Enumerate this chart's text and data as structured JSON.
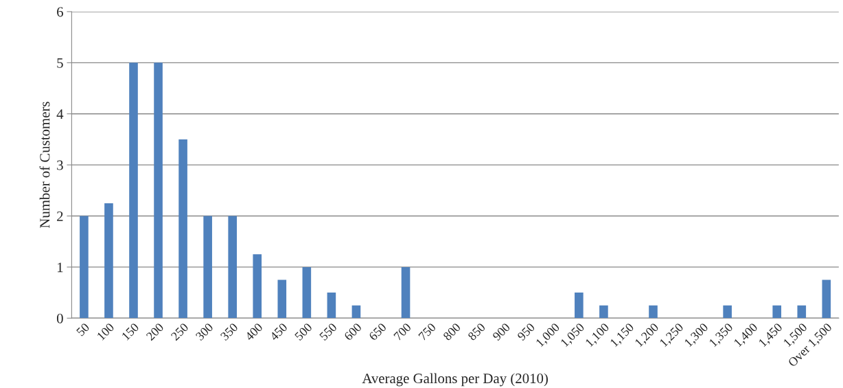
{
  "chart_data": {
    "type": "bar",
    "xlabel": "Average Gallons per Day (2010)",
    "ylabel": "Number of Customers",
    "categories": [
      "50",
      "100",
      "150",
      "200",
      "250",
      "300",
      "350",
      "400",
      "450",
      "500",
      "550",
      "600",
      "650",
      "700",
      "750",
      "800",
      "850",
      "900",
      "950",
      "1,000",
      "1,050",
      "1,100",
      "1,150",
      "1,200",
      "1,250",
      "1,300",
      "1,350",
      "1,400",
      "1,450",
      "1,500",
      "Over 1,500"
    ],
    "values": [
      2,
      2.25,
      5,
      5,
      3.5,
      2,
      2,
      1.25,
      0.75,
      1,
      0.5,
      0.25,
      0,
      1,
      0,
      0,
      0,
      0,
      0,
      0,
      0.5,
      0.25,
      0,
      0.25,
      0,
      0,
      0.25,
      0,
      0.25,
      0.25,
      0.75
    ],
    "color": "#4f81bd",
    "ylim": [
      0,
      6
    ],
    "yticks": [
      0,
      1,
      2,
      3,
      4,
      5,
      6
    ],
    "grid": "y",
    "legend": false
  }
}
